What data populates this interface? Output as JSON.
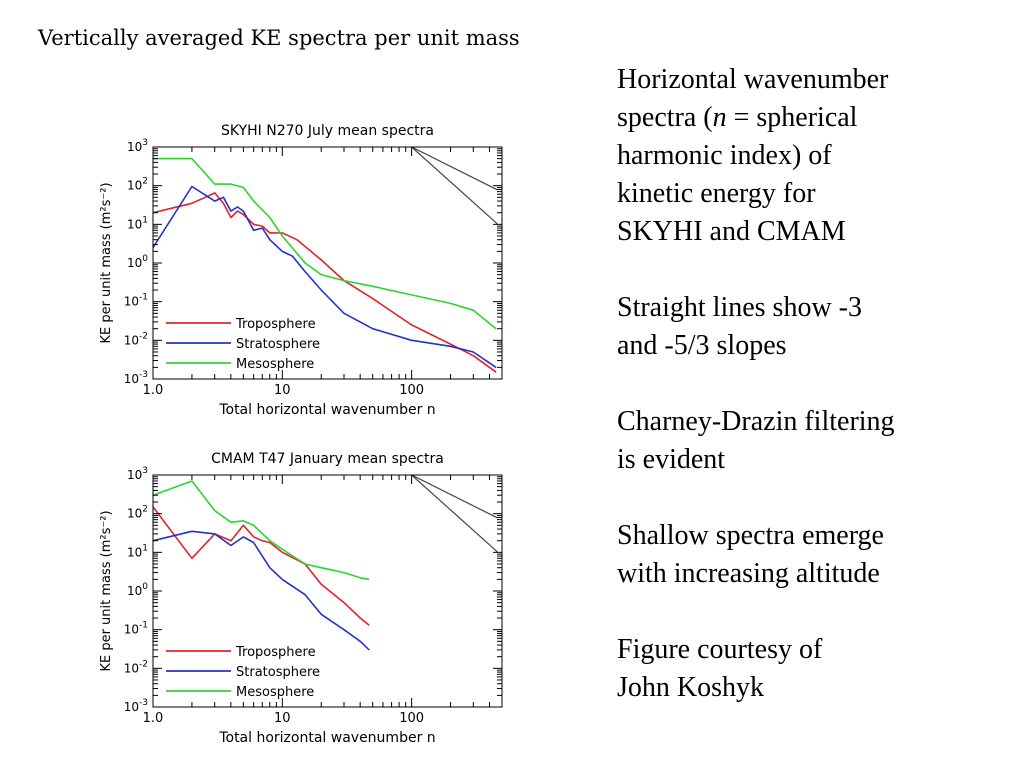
{
  "slide_title": "Vertically averaged KE spectra per unit mass",
  "side_text": {
    "p1_line1": "Horizontal wavenumber",
    "p1_line2_a": "spectra (",
    "p1_line2_n": "n",
    "p1_line2_b": " = spherical",
    "p1_line3": "harmonic index) of",
    "p1_line4": "kinetic energy for",
    "p1_line5": "SKYHI and CMAM",
    "p2_line1": "Straight lines show -3",
    "p2_line2": "and -5/3 slopes",
    "p3_line1": "Charney-Drazin filtering",
    "p3_line2": "is evident",
    "p4_line1": "Shallow spectra emerge",
    "p4_line2": "with increasing altitude",
    "p5_line1": "Figure courtesy of",
    "p5_line2": "John Koshyk"
  },
  "chart_data": [
    {
      "type": "line",
      "title": "SKYHI N270 July mean spectra",
      "xlabel": "Total horizontal wavenumber n",
      "ylabel": "KE per unit mass (m²s⁻²)",
      "x_scale": "log",
      "y_scale": "log",
      "xlim": [
        1,
        500
      ],
      "ylim": [
        0.001,
        1000
      ],
      "x_ticks": [
        {
          "value": 1,
          "label": "1.0"
        },
        {
          "value": 10,
          "label": "10"
        },
        {
          "value": 100,
          "label": "100"
        }
      ],
      "y_ticks": [
        {
          "value": 0.001,
          "base": "10",
          "exp": "-3"
        },
        {
          "value": 0.01,
          "base": "10",
          "exp": "-2"
        },
        {
          "value": 0.1,
          "base": "10",
          "exp": "-1"
        },
        {
          "value": 1,
          "base": "10",
          "exp": "0"
        },
        {
          "value": 10,
          "base": "10",
          "exp": "1"
        },
        {
          "value": 100,
          "base": "10",
          "exp": "2"
        },
        {
          "value": 1000,
          "base": "10",
          "exp": "3"
        }
      ],
      "legend": "bottom-left",
      "grid": false,
      "series": [
        {
          "name": "Troposphere",
          "color": "#e0242c",
          "x": [
            1,
            2,
            2.7,
            3,
            3.5,
            4,
            4.5,
            5,
            6,
            7,
            8,
            10,
            13,
            20,
            30,
            50,
            100,
            200,
            300,
            450
          ],
          "y": [
            20,
            35,
            55,
            65,
            35,
            15,
            22,
            18,
            10,
            9,
            6,
            6,
            4,
            1.2,
            0.35,
            0.12,
            0.025,
            0.008,
            0.004,
            0.0015
          ]
        },
        {
          "name": "Stratosphere",
          "color": "#2432c8",
          "x": [
            1,
            2,
            3,
            3.5,
            4,
            4.5,
            5,
            6,
            7,
            8,
            10,
            12,
            15,
            20,
            30,
            50,
            100,
            200,
            300,
            450
          ],
          "y": [
            2.5,
            95,
            40,
            50,
            22,
            28,
            22,
            7,
            8,
            4,
            2,
            1.5,
            0.6,
            0.2,
            0.05,
            0.02,
            0.01,
            0.007,
            0.005,
            0.002
          ]
        },
        {
          "name": "Mesosphere",
          "color": "#2ed42e",
          "x": [
            1,
            2,
            3,
            4,
            5,
            6,
            8,
            10,
            15,
            20,
            30,
            50,
            100,
            200,
            300,
            450
          ],
          "y": [
            500,
            500,
            110,
            110,
            90,
            40,
            15,
            5,
            1,
            0.5,
            0.35,
            0.25,
            0.15,
            0.09,
            0.06,
            0.02
          ]
        }
      ],
      "slope_lines": [
        {
          "slope": -3,
          "color": "#444444",
          "x": [
            100,
            460
          ],
          "y": [
            1000,
            10.3
          ]
        },
        {
          "slope": -1.6667,
          "color": "#444444",
          "x": [
            100,
            460
          ],
          "y": [
            1000,
            78
          ]
        }
      ]
    },
    {
      "type": "line",
      "title": "CMAM T47 January mean spectra",
      "xlabel": "Total horizontal wavenumber n",
      "ylabel": "KE per unit mass (m²s⁻²)",
      "x_scale": "log",
      "y_scale": "log",
      "xlim": [
        1,
        500
      ],
      "ylim": [
        0.001,
        1000
      ],
      "x_ticks": [
        {
          "value": 1,
          "label": "1.0"
        },
        {
          "value": 10,
          "label": "10"
        },
        {
          "value": 100,
          "label": "100"
        }
      ],
      "y_ticks": [
        {
          "value": 0.001,
          "base": "10",
          "exp": "-3"
        },
        {
          "value": 0.01,
          "base": "10",
          "exp": "-2"
        },
        {
          "value": 0.1,
          "base": "10",
          "exp": "-1"
        },
        {
          "value": 1,
          "base": "10",
          "exp": "0"
        },
        {
          "value": 10,
          "base": "10",
          "exp": "1"
        },
        {
          "value": 100,
          "base": "10",
          "exp": "2"
        },
        {
          "value": 1000,
          "base": "10",
          "exp": "3"
        }
      ],
      "legend": "bottom-left",
      "grid": false,
      "series": [
        {
          "name": "Troposphere",
          "color": "#e0242c",
          "x": [
            1,
            2,
            3,
            4,
            5,
            6,
            7,
            8,
            10,
            15,
            20,
            30,
            40,
            47
          ],
          "y": [
            150,
            7,
            30,
            20,
            50,
            25,
            20,
            18,
            10,
            5,
            1.5,
            0.5,
            0.2,
            0.13
          ]
        },
        {
          "name": "Stratosphere",
          "color": "#2432c8",
          "x": [
            1,
            2,
            3,
            4,
            5,
            6,
            8,
            10,
            15,
            20,
            30,
            40,
            47
          ],
          "y": [
            20,
            35,
            30,
            15,
            25,
            18,
            4,
            2,
            0.8,
            0.25,
            0.1,
            0.05,
            0.03
          ]
        },
        {
          "name": "Mesosphere",
          "color": "#2ed42e",
          "x": [
            1,
            2,
            3,
            4,
            5,
            6,
            8,
            10,
            15,
            20,
            30,
            40,
            47
          ],
          "y": [
            300,
            700,
            120,
            60,
            65,
            50,
            20,
            12,
            5,
            4,
            3,
            2.2,
            2
          ]
        }
      ],
      "slope_lines": [
        {
          "slope": -3,
          "color": "#444444",
          "x": [
            100,
            460
          ],
          "y": [
            1000,
            10.3
          ]
        },
        {
          "slope": -1.6667,
          "color": "#444444",
          "x": [
            100,
            460
          ],
          "y": [
            1000,
            78
          ]
        }
      ]
    }
  ]
}
